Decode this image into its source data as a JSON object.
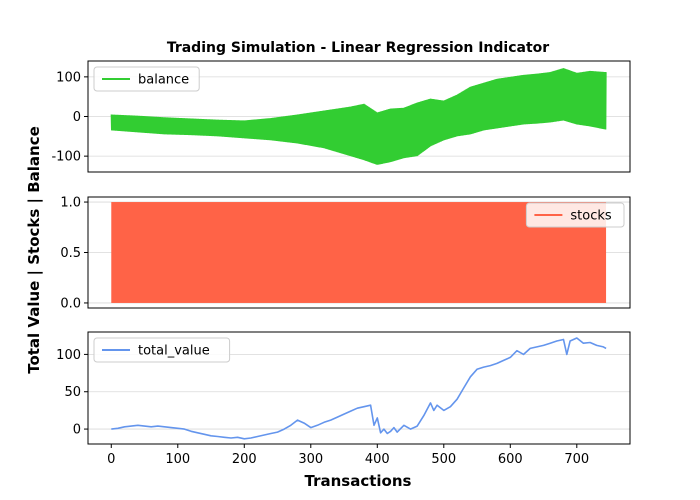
{
  "chart_data": {
    "type": "line",
    "title": "Trading Simulation - Linear Regression Indicator",
    "xlabel": "Transactions",
    "ylabel": "Total Value | Stocks | Balance",
    "xlim": [
      -35,
      780
    ],
    "x_ticks": [
      0,
      100,
      200,
      300,
      400,
      500,
      600,
      700
    ],
    "panels": [
      {
        "series_name": "balance",
        "color": "#32cd32",
        "render": "oscillating_band",
        "ylim": [
          -140,
          140
        ],
        "y_ticks": [
          100,
          0,
          -100
        ],
        "legend_loc": "upper-left",
        "x": [
          0,
          40,
          80,
          120,
          160,
          200,
          240,
          280,
          320,
          360,
          380,
          400,
          420,
          440,
          460,
          480,
          500,
          520,
          540,
          560,
          580,
          600,
          620,
          640,
          660,
          680,
          700,
          720,
          744
        ],
        "upper": [
          5,
          2,
          -2,
          -5,
          -8,
          -10,
          -4,
          5,
          15,
          25,
          32,
          10,
          20,
          22,
          35,
          45,
          40,
          55,
          75,
          85,
          95,
          100,
          105,
          108,
          112,
          122,
          110,
          115,
          112
        ],
        "lower": [
          -35,
          -40,
          -45,
          -47,
          -50,
          -55,
          -60,
          -68,
          -80,
          -100,
          -110,
          -122,
          -115,
          -105,
          -100,
          -75,
          -60,
          -50,
          -45,
          -35,
          -30,
          -25,
          -20,
          -18,
          -15,
          -10,
          -20,
          -25,
          -33
        ]
      },
      {
        "series_name": "stocks",
        "color": "#ff6347",
        "render": "oscillating_fill",
        "ylim": [
          -0.05,
          1.05
        ],
        "y_ticks": [
          1.0,
          0.5,
          0.0
        ],
        "legend_loc": "upper-right",
        "x": [
          0,
          744
        ],
        "upper": [
          1.0,
          1.0
        ],
        "lower": [
          0.0,
          0.0
        ]
      },
      {
        "series_name": "total_value",
        "color": "#6495ed",
        "render": "line",
        "ylim": [
          -20,
          130
        ],
        "y_ticks": [
          100,
          50,
          0
        ],
        "legend_loc": "upper-left",
        "x": [
          0,
          10,
          20,
          30,
          40,
          50,
          60,
          70,
          80,
          90,
          100,
          110,
          120,
          130,
          140,
          150,
          160,
          170,
          180,
          190,
          200,
          210,
          220,
          230,
          240,
          250,
          260,
          270,
          280,
          290,
          300,
          310,
          320,
          330,
          340,
          350,
          360,
          370,
          380,
          390,
          395,
          400,
          405,
          410,
          415,
          420,
          425,
          430,
          440,
          450,
          460,
          470,
          480,
          485,
          490,
          500,
          510,
          520,
          530,
          540,
          550,
          560,
          570,
          580,
          590,
          600,
          610,
          620,
          630,
          640,
          650,
          660,
          670,
          680,
          685,
          690,
          700,
          710,
          720,
          730,
          740,
          744
        ],
        "values": [
          0,
          1,
          3,
          4,
          5,
          4,
          3,
          4,
          3,
          2,
          1,
          0,
          -3,
          -5,
          -7,
          -9,
          -10,
          -11,
          -12,
          -11,
          -13,
          -12,
          -10,
          -8,
          -6,
          -4,
          0,
          5,
          12,
          8,
          2,
          5,
          9,
          12,
          16,
          20,
          24,
          28,
          30,
          32,
          5,
          15,
          -5,
          0,
          -6,
          -3,
          2,
          -4,
          5,
          0,
          4,
          18,
          35,
          25,
          32,
          25,
          30,
          40,
          55,
          70,
          80,
          83,
          85,
          88,
          92,
          96,
          105,
          100,
          108,
          110,
          112,
          115,
          118,
          120,
          100,
          118,
          122,
          115,
          116,
          112,
          110,
          108
        ]
      }
    ]
  }
}
